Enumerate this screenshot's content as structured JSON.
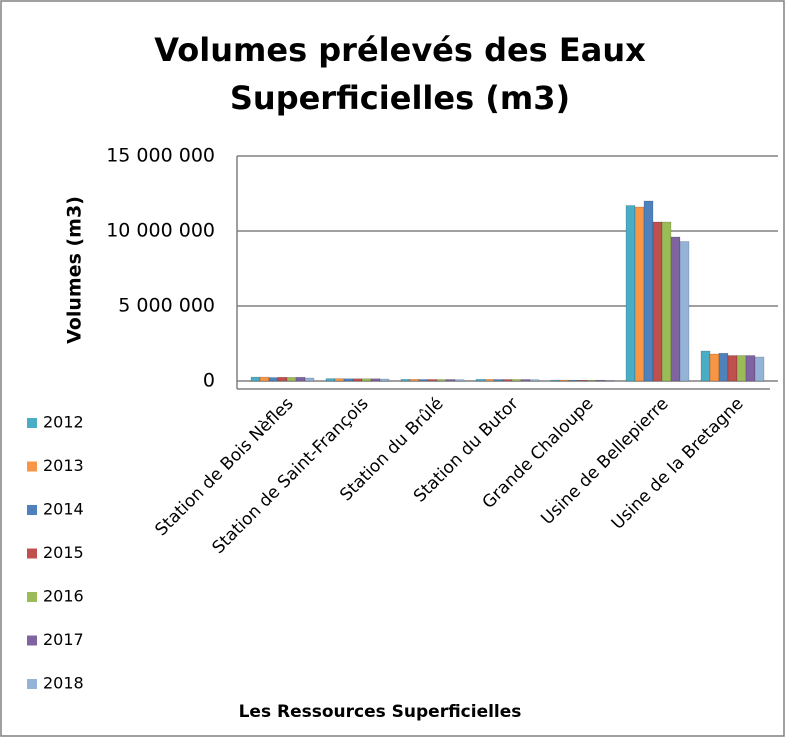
{
  "chart_data": {
    "type": "bar",
    "title": "Volumes prélevés des Eaux Superficielles (m3)",
    "y_label": "Volumes (m3)",
    "x_label": "Les Ressources Superficielles",
    "categories": [
      "Station de Bois Nèfles",
      "Station de Saint-François",
      "Station du Brûlé",
      "Station du Butor",
      "Grande Chaloupe",
      "Usine de Bellepierre",
      "Usine de la Bretagne"
    ],
    "series": [
      {
        "name": "2012",
        "color": "#4bacc6",
        "values": [
          260000,
          160000,
          110000,
          110000,
          60000,
          11700000,
          2000000
        ]
      },
      {
        "name": "2013",
        "color": "#f79646",
        "values": [
          260000,
          160000,
          110000,
          110000,
          60000,
          11600000,
          1800000
        ]
      },
      {
        "name": "2014",
        "color": "#4f81bd",
        "values": [
          230000,
          150000,
          100000,
          100000,
          50000,
          12000000,
          1850000
        ]
      },
      {
        "name": "2015",
        "color": "#c0504d",
        "values": [
          250000,
          150000,
          100000,
          100000,
          50000,
          10600000,
          1700000
        ]
      },
      {
        "name": "2016",
        "color": "#9bbb59",
        "values": [
          240000,
          150000,
          100000,
          100000,
          50000,
          10600000,
          1700000
        ]
      },
      {
        "name": "2017",
        "color": "#8064a2",
        "values": [
          250000,
          150000,
          100000,
          100000,
          50000,
          9600000,
          1700000
        ]
      },
      {
        "name": "2018",
        "color": "#95b3d7",
        "values": [
          200000,
          130000,
          90000,
          90000,
          40000,
          9300000,
          1600000
        ]
      }
    ],
    "ylim": [
      0,
      15000000
    ],
    "yticks": [
      0,
      {
        "value": 5000000,
        "label": "5 000 000"
      },
      {
        "value": 10000000,
        "label": "10 000 000"
      },
      {
        "value": 15000000,
        "label": "15 000 000"
      }
    ],
    "grid": true
  }
}
